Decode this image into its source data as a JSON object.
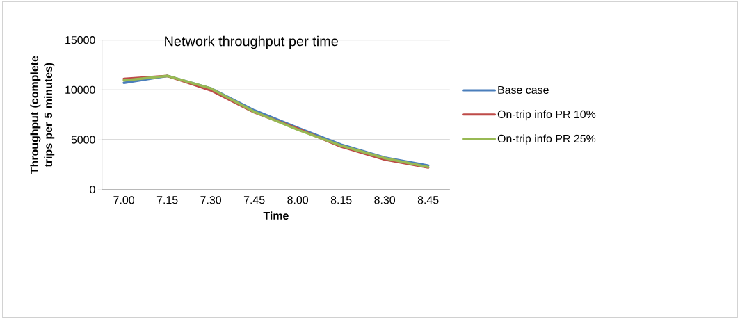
{
  "chart_data": {
    "type": "line",
    "title": "Network throughput per time",
    "xlabel": "Time",
    "ylabel": "Throughput (complete trips per 5 minutes)",
    "categories": [
      "7.00",
      "7.15",
      "7.30",
      "7.45",
      "8.00",
      "8.15",
      "8.30",
      "8.45"
    ],
    "series": [
      {
        "name": "Base case",
        "color": "#4a7ebb",
        "values": [
          10700,
          11400,
          10150,
          7950,
          6200,
          4500,
          3200,
          2400
        ]
      },
      {
        "name": "On-trip info PR 10%",
        "color": "#be4b48",
        "values": [
          11100,
          11400,
          9950,
          7750,
          6100,
          4300,
          3000,
          2200
        ]
      },
      {
        "name": "On-trip info PR 25%",
        "color": "#98b954",
        "values": [
          10950,
          11400,
          10150,
          7800,
          6000,
          4400,
          3150,
          2250
        ]
      }
    ],
    "ylim": [
      0,
      15000
    ],
    "yticks": [
      0,
      5000,
      10000,
      15000
    ],
    "grid": "y",
    "legend": "right"
  }
}
